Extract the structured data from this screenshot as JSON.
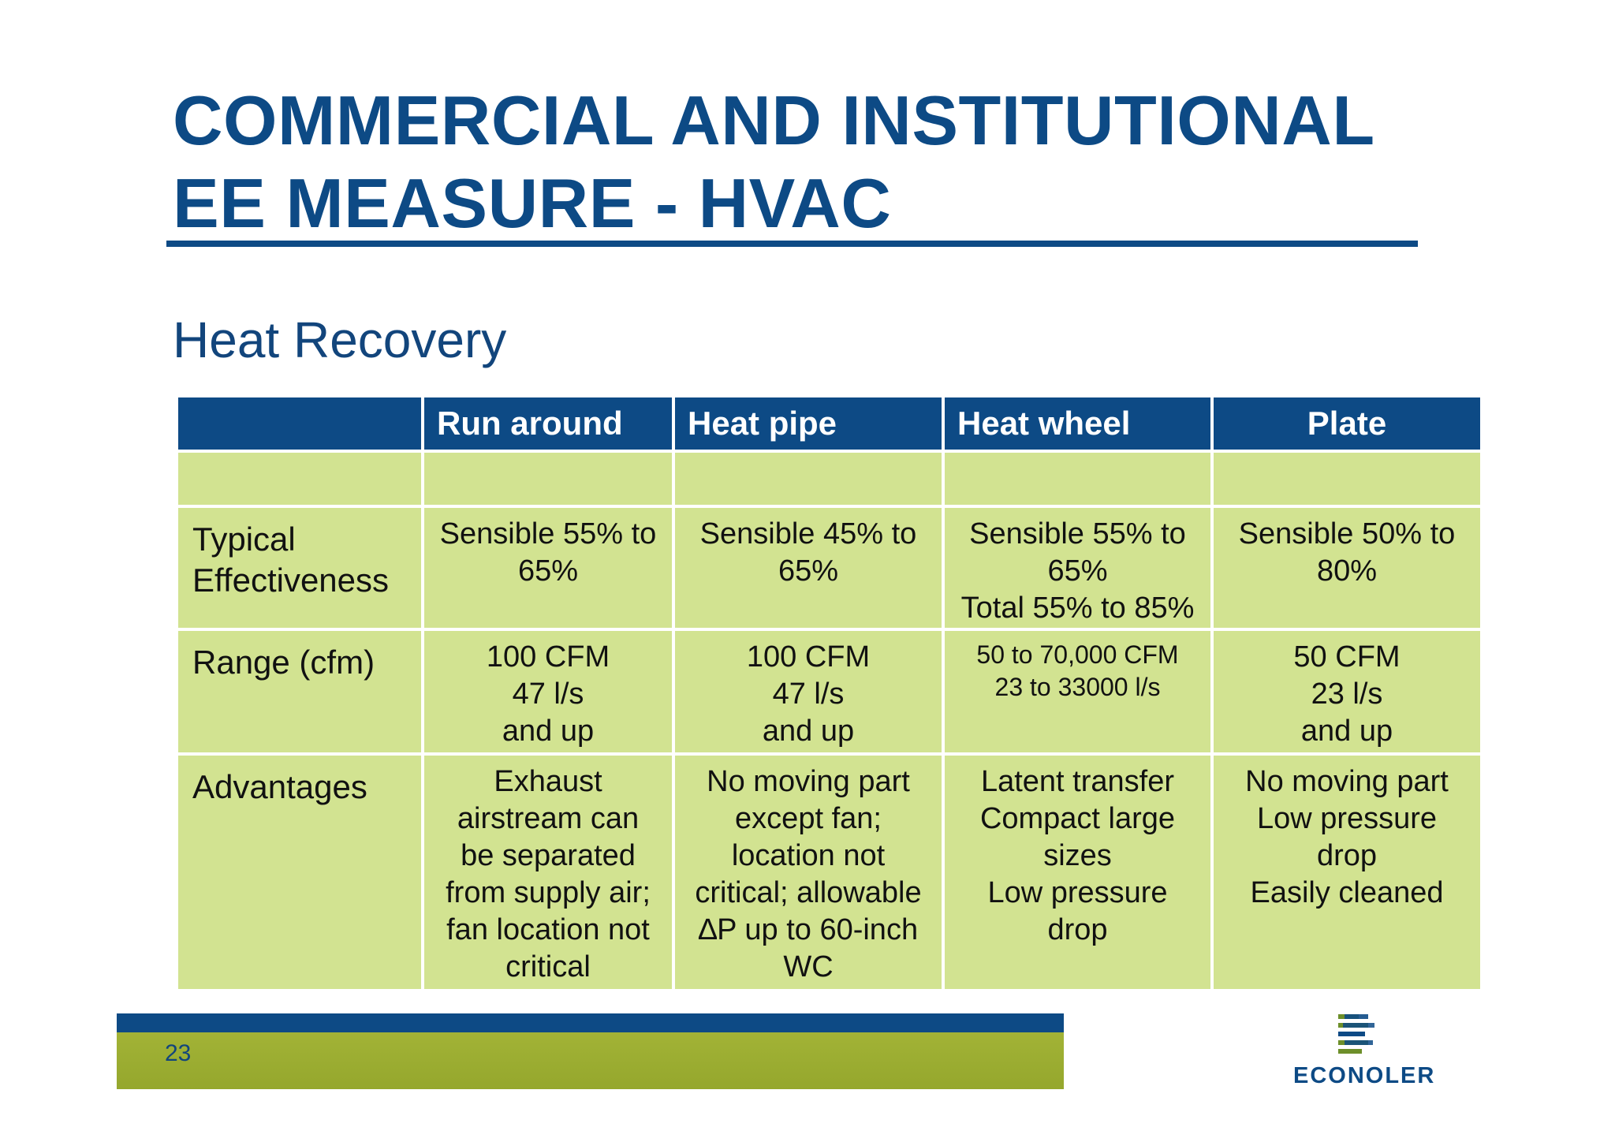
{
  "slide": {
    "title_lines": [
      "COMMERCIAL AND INSTITUTIONAL",
      "EE MEASURE - HVAC"
    ],
    "subtitle": "Heat Recovery",
    "page_number": "23",
    "logo_text": "ECONOLER"
  },
  "table": {
    "headers": [
      "",
      "Run around",
      "Heat pipe",
      "Heat wheel",
      "Plate"
    ],
    "rows": [
      {
        "label_lines": [],
        "cells": [
          [],
          [],
          [],
          []
        ]
      },
      {
        "label_lines": [
          "Typical",
          "Effectiveness"
        ],
        "cells": [
          [
            "Sensible 55% to",
            "65%"
          ],
          [
            "Sensible 45% to",
            "65%"
          ],
          [
            "Sensible 55% to",
            "65%",
            "Total 55% to 85%"
          ],
          [
            "Sensible 50% to",
            "80%"
          ]
        ]
      },
      {
        "label_lines": [
          "Range (cfm)"
        ],
        "cells": [
          [
            "100 CFM",
            "47 l/s",
            "and up"
          ],
          [
            "100 CFM",
            "47 l/s",
            "and up"
          ],
          [
            "50 to 70,000 CFM",
            "23 to 33000 l/s"
          ],
          [
            "50 CFM",
            "23 l/s",
            "and up"
          ]
        ]
      },
      {
        "label_lines": [
          "Advantages"
        ],
        "cells": [
          [
            "Exhaust",
            "airstream can",
            "be separated",
            "from supply air;",
            "fan location not",
            "critical"
          ],
          [
            "No moving part",
            "except fan;",
            "location not",
            "critical; allowable",
            "∆P up to 60-inch",
            "WC"
          ],
          [
            "Latent transfer",
            "Compact large",
            "sizes",
            "Low pressure",
            "drop"
          ],
          [
            "No moving part",
            "Low pressure",
            "drop",
            "Easily cleaned"
          ]
        ]
      }
    ]
  },
  "colors": {
    "brand_blue": "#0d4a85",
    "cell_green": "#d2e391",
    "footer_green": "#9aab30"
  }
}
